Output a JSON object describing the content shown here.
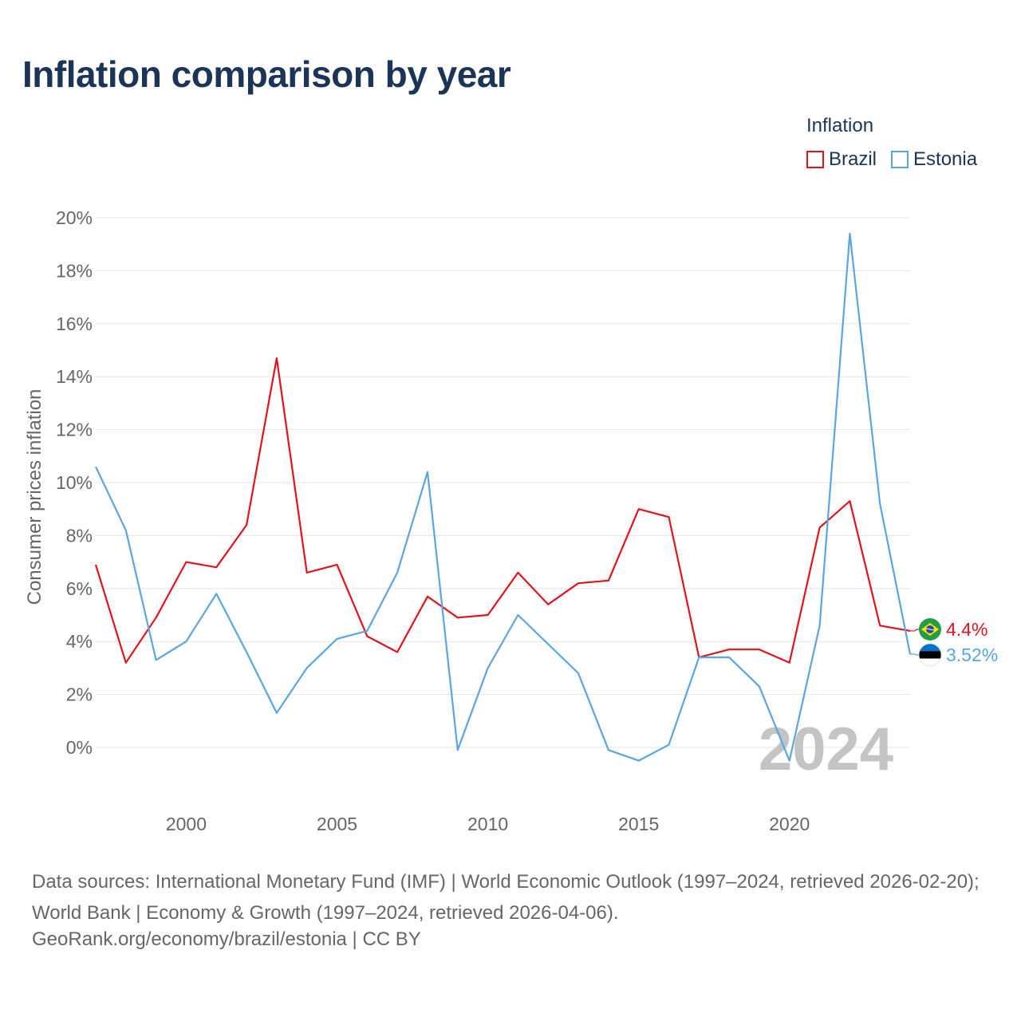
{
  "title": "Inflation comparison by year",
  "legend": {
    "title": "Inflation",
    "items": [
      {
        "label": "Brazil",
        "color": "#e3121b"
      },
      {
        "label": "Estonia",
        "color": "#5aa5e3"
      }
    ]
  },
  "chart_data": {
    "type": "line",
    "title": "Inflation comparison by year",
    "ylabel": "Consumer prices inflation",
    "xlabel": "",
    "ylim": [
      -2,
      20
    ],
    "xlim": [
      1997,
      2024
    ],
    "yticks": [
      0,
      2,
      4,
      6,
      8,
      10,
      12,
      14,
      16,
      18,
      20
    ],
    "ytick_labels": [
      "0%",
      "2%",
      "4%",
      "6%",
      "8%",
      "10%",
      "12%",
      "14%",
      "16%",
      "18%",
      "20%"
    ],
    "xticks": [
      2000,
      2005,
      2010,
      2015,
      2020
    ],
    "xtick_labels": [
      "2000",
      "2005",
      "2010",
      "2015",
      "2020"
    ],
    "x": [
      1997,
      1998,
      1999,
      2000,
      2001,
      2002,
      2003,
      2004,
      2005,
      2006,
      2007,
      2008,
      2009,
      2010,
      2011,
      2012,
      2013,
      2014,
      2015,
      2016,
      2017,
      2018,
      2019,
      2020,
      2021,
      2022,
      2023,
      2024
    ],
    "series": [
      {
        "name": "Brazil",
        "color": "#e3121b",
        "end_label": "4.4%",
        "values": [
          6.9,
          3.2,
          4.9,
          7.0,
          6.8,
          8.4,
          14.7,
          6.6,
          6.9,
          4.2,
          3.6,
          5.7,
          4.9,
          5.0,
          6.6,
          5.4,
          6.2,
          6.3,
          9.0,
          8.7,
          3.4,
          3.7,
          3.7,
          3.2,
          8.3,
          9.3,
          4.6,
          4.4
        ]
      },
      {
        "name": "Estonia",
        "color": "#5aa5e3",
        "end_label": "3.52%",
        "values": [
          10.6,
          8.2,
          3.3,
          4.0,
          5.8,
          3.6,
          1.3,
          3.0,
          4.1,
          4.4,
          6.6,
          10.4,
          -0.1,
          3.0,
          5.0,
          3.9,
          2.8,
          -0.1,
          -0.5,
          0.1,
          3.4,
          3.4,
          2.3,
          -0.5,
          4.6,
          19.4,
          9.2,
          3.52
        ]
      }
    ]
  },
  "year_watermark": "2024",
  "source": "Data sources: International Monetary Fund (IMF) | World Economic Outlook (1997–2024, retrieved 2026-02-20); World Bank | Economy & Growth (1997–2024, retrieved 2026-04-06).",
  "credit": "GeoRank.org/economy/brazil/estonia | CC BY"
}
